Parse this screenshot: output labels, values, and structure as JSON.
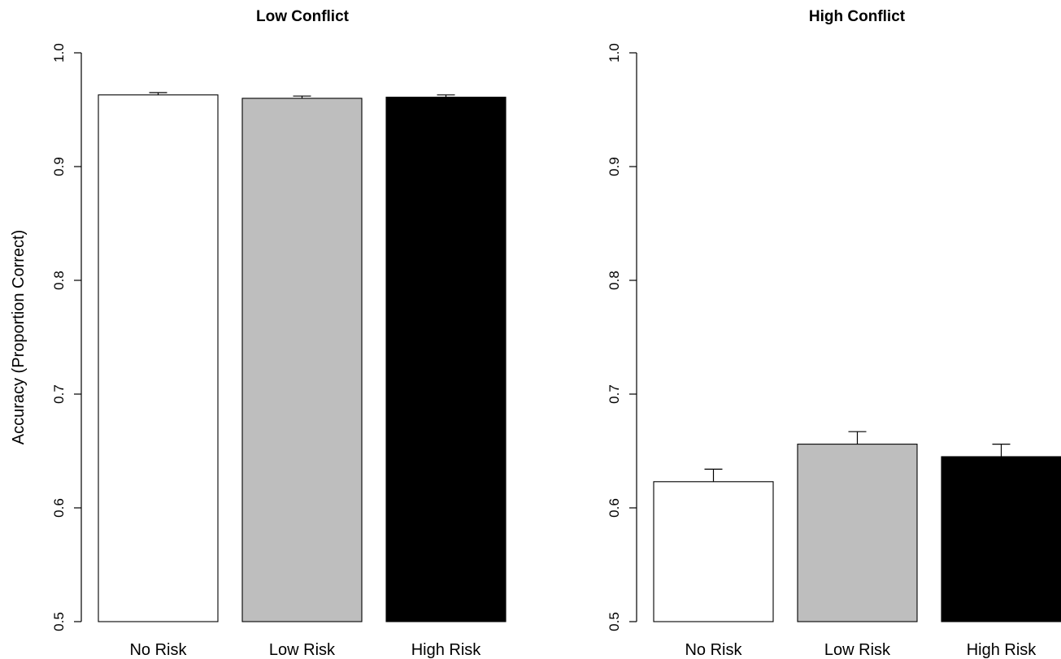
{
  "chart_data": [
    {
      "type": "bar",
      "title": "Low Conflict",
      "categories": [
        "No Risk",
        "Low Risk",
        "High Risk"
      ],
      "values": [
        0.963,
        0.96,
        0.961
      ],
      "error": [
        0.002,
        0.002,
        0.002
      ],
      "colors": [
        "#ffffff",
        "#bebebe",
        "#000000"
      ],
      "ylabel": "Accuracy (Proportion Correct)",
      "ylim": [
        0.5,
        1.0
      ],
      "yticks": [
        "0.5",
        "0.6",
        "0.7",
        "0.8",
        "0.9",
        "1.0"
      ],
      "grid": false
    },
    {
      "type": "bar",
      "title": "High Conflict",
      "categories": [
        "No Risk",
        "Low Risk",
        "High Risk"
      ],
      "values": [
        0.623,
        0.656,
        0.645
      ],
      "error": [
        0.011,
        0.011,
        0.011
      ],
      "colors": [
        "#ffffff",
        "#bebebe",
        "#000000"
      ],
      "ylabel": "",
      "ylim": [
        0.5,
        1.0
      ],
      "yticks": [
        "0.5",
        "0.6",
        "0.7",
        "0.8",
        "0.9",
        "1.0"
      ],
      "grid": false
    }
  ]
}
